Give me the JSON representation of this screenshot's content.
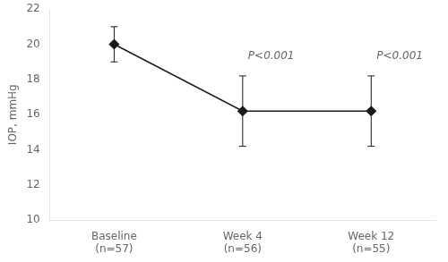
{
  "chart_data": {
    "type": "line",
    "y_label": "IOP, mmHg",
    "categories": [
      "Baseline\n(n=57)",
      "Week 4\n(n=56)",
      "Week 12\n(n=55)"
    ],
    "values": [
      20.0,
      16.2,
      16.2
    ],
    "errors": [
      1.0,
      2.0,
      2.0
    ],
    "color": "#1a1a1a",
    "marker": "diamond",
    "ylim": [
      10,
      22
    ],
    "yticks": [
      10,
      12,
      14,
      16,
      18,
      20,
      22
    ],
    "grid": false,
    "annotations": [
      {
        "text": "P<0.001",
        "x": "Week 4\n(n=56)",
        "y": 19.0
      },
      {
        "text": "P<0.001",
        "x": "Week 12\n(n=55)",
        "y": 19.0
      }
    ]
  }
}
